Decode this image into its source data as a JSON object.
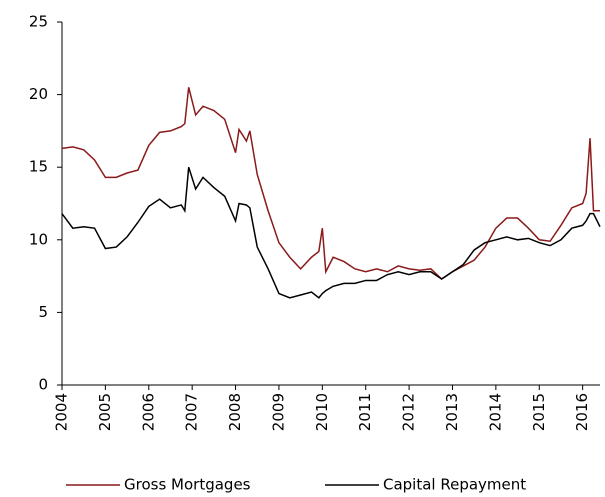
{
  "chart_data": {
    "type": "line",
    "x": [
      2004,
      2004.25,
      2004.5,
      2004.75,
      2005,
      2005.25,
      2005.5,
      2005.75,
      2006,
      2006.25,
      2006.5,
      2006.75,
      2006.83,
      2006.92,
      2007.08,
      2007.25,
      2007.5,
      2007.75,
      2008,
      2008.08,
      2008.25,
      2008.33,
      2008.5,
      2008.75,
      2009,
      2009.25,
      2009.5,
      2009.75,
      2009.92,
      2010,
      2010.08,
      2010.25,
      2010.5,
      2010.75,
      2011,
      2011.25,
      2011.5,
      2011.75,
      2012,
      2012.25,
      2012.5,
      2012.75,
      2013,
      2013.25,
      2013.5,
      2013.75,
      2014,
      2014.25,
      2014.5,
      2014.75,
      2015,
      2015.25,
      2015.5,
      2015.75,
      2016,
      2016.08,
      2016.17,
      2016.25,
      2016.4
    ],
    "series": [
      {
        "name": "Gross Mortgages",
        "color": "#8b1a1a",
        "values": [
          16.3,
          16.4,
          16.2,
          15.5,
          14.3,
          14.3,
          14.6,
          14.8,
          16.5,
          17.4,
          17.5,
          17.8,
          18.0,
          20.5,
          18.6,
          19.2,
          18.9,
          18.3,
          16.0,
          17.6,
          16.8,
          17.5,
          14.5,
          12.0,
          9.8,
          8.8,
          8.0,
          8.8,
          9.2,
          10.8,
          7.8,
          8.8,
          8.5,
          8.0,
          7.8,
          8.0,
          7.8,
          8.2,
          8.0,
          7.9,
          8.0,
          7.3,
          7.8,
          8.2,
          8.6,
          9.5,
          10.8,
          11.5,
          11.5,
          10.8,
          10.0,
          9.9,
          11.0,
          12.2,
          12.5,
          13.2,
          17.0,
          12.0,
          12.0
        ]
      },
      {
        "name": "Capital Repayment",
        "color": "#000000",
        "values": [
          11.8,
          10.8,
          10.9,
          10.8,
          9.4,
          9.5,
          10.2,
          11.2,
          12.3,
          12.8,
          12.2,
          12.4,
          12.0,
          15.0,
          13.5,
          14.3,
          13.6,
          13.0,
          11.3,
          12.5,
          12.4,
          12.2,
          9.5,
          8.0,
          6.3,
          6.0,
          6.2,
          6.4,
          6.0,
          6.3,
          6.5,
          6.8,
          7.0,
          7.0,
          7.2,
          7.2,
          7.6,
          7.8,
          7.6,
          7.8,
          7.8,
          7.3,
          7.8,
          8.3,
          9.3,
          9.8,
          10.0,
          10.2,
          10.0,
          10.1,
          9.8,
          9.6,
          10.0,
          10.8,
          11.0,
          11.3,
          11.8,
          11.8,
          10.9
        ]
      }
    ],
    "xlim": [
      2004,
      2016.4
    ],
    "xticks": [
      2004,
      2005,
      2006,
      2007,
      2008,
      2009,
      2010,
      2011,
      2012,
      2013,
      2014,
      2015,
      2016
    ],
    "ylim": [
      0,
      25
    ],
    "yticks": [
      0,
      5,
      10,
      15,
      20,
      25
    ],
    "legend": "bottom"
  }
}
